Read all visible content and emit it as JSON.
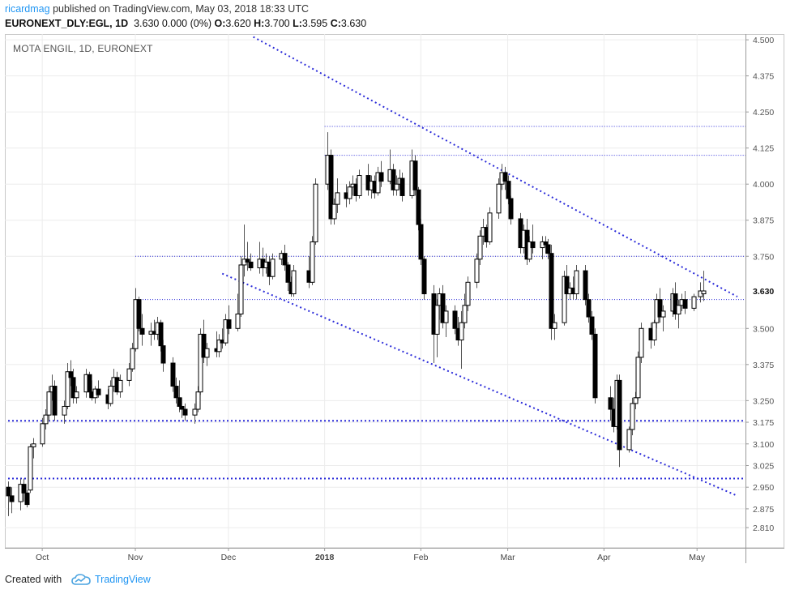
{
  "header": {
    "user": "ricardmag",
    "published": "published on TradingView.com, May 03, 2018 18:33 UTC",
    "symbol": "EURONEXT_DLY:EGL, 1D",
    "last": "3.630",
    "change": "0.000 (0%)",
    "open_label": "O:",
    "open": "3.620",
    "high_label": "H:",
    "high": "3.700",
    "low_label": "L:",
    "low": "3.595",
    "close_label": "C:",
    "close": "3.630"
  },
  "footer": {
    "created_with": "Created with",
    "brand": "TradingView",
    "logo_icon": "tradingview-cloud-icon"
  },
  "chart_data": {
    "type": "candlestick",
    "title": "MOTA ENGIL, 1D, EURONEXT",
    "y_axis": {
      "side": "right",
      "range": [
        2.74,
        4.52
      ],
      "ticks": [
        4.5,
        4.375,
        4.25,
        4.125,
        4.0,
        3.875,
        3.75,
        3.5,
        3.375,
        3.25,
        3.175,
        3.1,
        3.025,
        2.95,
        2.875,
        2.81
      ],
      "tick_labels": [
        "4.500",
        "4.375",
        "4.250",
        "4.125",
        "4.000",
        "3.875",
        "3.750",
        "3.500",
        "3.375",
        "3.250",
        "3.175",
        "3.100",
        "3.025",
        "2.950",
        "2.875",
        "2.810"
      ],
      "last_price_label": "3.630"
    },
    "x_axis": {
      "range": [
        "2017-09-21",
        "2018-05-14"
      ],
      "ticks": [
        {
          "label": "Oct",
          "date": "2017-10-02",
          "bold": false
        },
        {
          "label": "Nov",
          "date": "2017-11-01",
          "bold": false
        },
        {
          "label": "Dec",
          "date": "2017-12-01",
          "bold": false
        },
        {
          "label": "2018",
          "date": "2018-01-01",
          "bold": true
        },
        {
          "label": "Feb",
          "date": "2018-02-01",
          "bold": false
        },
        {
          "label": "Mar",
          "date": "2018-03-01",
          "bold": false
        },
        {
          "label": "Apr",
          "date": "2018-04-01",
          "bold": false
        },
        {
          "label": "May",
          "date": "2018-05-01",
          "bold": false
        }
      ]
    },
    "grid": true,
    "colors": {
      "up": "#ffffff",
      "down": "#000000",
      "outline": "#000000",
      "wick": "#555555",
      "lines": "#2b2bd9"
    },
    "horizontal_lines": [
      {
        "price": 4.2,
        "from": "2018-01-01",
        "style": "dotted-thin"
      },
      {
        "price": 4.1,
        "from": "2018-01-01",
        "style": "dotted-thin"
      },
      {
        "price": 3.75,
        "from": "2017-11-01",
        "style": "dotted-thin"
      },
      {
        "price": 3.6,
        "from": "2017-11-01",
        "style": "dotted-thin"
      },
      {
        "price": 3.18,
        "from": "2017-09-21",
        "style": "dotted-bold"
      },
      {
        "price": 2.98,
        "from": "2017-09-21",
        "style": "dotted-bold"
      }
    ],
    "trend_lines": [
      {
        "from": [
          "2017-12-09",
          4.51
        ],
        "to": [
          "2018-05-14",
          3.61
        ]
      },
      {
        "from": [
          "2017-11-29",
          3.69
        ],
        "to": [
          "2018-05-14",
          2.92
        ]
      }
    ],
    "candles": [
      [
        "2017-09-21",
        2.95,
        2.97,
        2.85,
        2.92
      ],
      [
        "2017-09-22",
        2.92,
        2.95,
        2.86,
        2.9
      ],
      [
        "2017-09-25",
        2.9,
        2.98,
        2.87,
        2.96
      ],
      [
        "2017-09-26",
        2.96,
        2.98,
        2.9,
        2.93
      ],
      [
        "2017-09-27",
        2.93,
        2.94,
        2.88,
        2.89
      ],
      [
        "2017-09-28",
        2.94,
        3.1,
        2.93,
        3.09
      ],
      [
        "2017-09-29",
        3.09,
        3.12,
        3.05,
        3.1
      ],
      [
        "2017-10-02",
        3.1,
        3.19,
        3.09,
        3.17
      ],
      [
        "2017-10-03",
        3.17,
        3.22,
        3.15,
        3.2
      ],
      [
        "2017-10-04",
        3.2,
        3.3,
        3.18,
        3.28
      ],
      [
        "2017-10-05",
        3.28,
        3.34,
        3.25,
        3.3
      ],
      [
        "2017-10-06",
        3.3,
        3.32,
        3.18,
        3.2
      ],
      [
        "2017-10-09",
        3.2,
        3.25,
        3.17,
        3.23
      ],
      [
        "2017-10-10",
        3.23,
        3.38,
        3.22,
        3.35
      ],
      [
        "2017-10-11",
        3.35,
        3.39,
        3.3,
        3.33
      ],
      [
        "2017-10-12",
        3.33,
        3.36,
        3.24,
        3.26
      ],
      [
        "2017-10-13",
        3.26,
        3.3,
        3.24,
        3.28
      ],
      [
        "2017-10-16",
        3.28,
        3.36,
        3.26,
        3.34
      ],
      [
        "2017-10-17",
        3.34,
        3.35,
        3.26,
        3.28
      ],
      [
        "2017-10-18",
        3.28,
        3.32,
        3.25,
        3.26
      ],
      [
        "2017-10-19",
        3.26,
        3.3,
        3.24,
        3.29
      ],
      [
        "2017-10-20",
        3.29,
        3.32,
        3.26,
        3.27
      ],
      [
        "2017-10-23",
        3.27,
        3.29,
        3.22,
        3.24
      ],
      [
        "2017-10-24",
        3.24,
        3.32,
        3.23,
        3.3
      ],
      [
        "2017-10-25",
        3.3,
        3.36,
        3.28,
        3.33
      ],
      [
        "2017-10-26",
        3.33,
        3.35,
        3.27,
        3.28
      ],
      [
        "2017-10-27",
        3.28,
        3.34,
        3.26,
        3.32
      ],
      [
        "2017-10-30",
        3.32,
        3.38,
        3.3,
        3.36
      ],
      [
        "2017-10-31",
        3.36,
        3.45,
        3.35,
        3.43
      ],
      [
        "2017-11-01",
        3.43,
        3.64,
        3.42,
        3.6
      ],
      [
        "2017-11-02",
        3.6,
        3.61,
        3.49,
        3.5
      ],
      [
        "2017-11-03",
        3.5,
        3.55,
        3.44,
        3.48
      ],
      [
        "2017-11-06",
        3.48,
        3.52,
        3.44,
        3.49
      ],
      [
        "2017-11-07",
        3.49,
        3.53,
        3.46,
        3.48
      ],
      [
        "2017-11-08",
        3.48,
        3.54,
        3.46,
        3.52
      ],
      [
        "2017-11-09",
        3.52,
        3.53,
        3.42,
        3.44
      ],
      [
        "2017-11-10",
        3.44,
        3.46,
        3.35,
        3.38
      ],
      [
        "2017-11-13",
        3.38,
        3.4,
        3.28,
        3.3
      ],
      [
        "2017-11-14",
        3.3,
        3.33,
        3.24,
        3.26
      ],
      [
        "2017-11-15",
        3.26,
        3.32,
        3.21,
        3.23
      ],
      [
        "2017-11-16",
        3.23,
        3.26,
        3.19,
        3.22
      ],
      [
        "2017-11-17",
        3.22,
        3.24,
        3.18,
        3.2
      ],
      [
        "2017-11-20",
        3.2,
        3.24,
        3.17,
        3.22
      ],
      [
        "2017-11-21",
        3.22,
        3.3,
        3.21,
        3.28
      ],
      [
        "2017-11-22",
        3.28,
        3.5,
        3.27,
        3.48
      ],
      [
        "2017-11-23",
        3.48,
        3.53,
        3.38,
        3.4
      ],
      [
        "2017-11-24",
        3.4,
        3.45,
        3.37,
        3.43
      ],
      [
        "2017-11-27",
        3.43,
        3.49,
        3.4,
        3.42
      ],
      [
        "2017-11-28",
        3.42,
        3.48,
        3.4,
        3.46
      ],
      [
        "2017-11-29",
        3.46,
        3.5,
        3.43,
        3.45
      ],
      [
        "2017-11-30",
        3.45,
        3.55,
        3.44,
        3.53
      ],
      [
        "2017-12-01",
        3.53,
        3.58,
        3.48,
        3.5
      ],
      [
        "2017-12-04",
        3.5,
        3.62,
        3.49,
        3.55
      ],
      [
        "2017-12-05",
        3.55,
        3.75,
        3.54,
        3.72
      ],
      [
        "2017-12-06",
        3.72,
        3.86,
        3.68,
        3.74
      ],
      [
        "2017-12-07",
        3.74,
        3.8,
        3.7,
        3.73
      ],
      [
        "2017-12-08",
        3.73,
        3.76,
        3.7,
        3.71
      ],
      [
        "2017-12-11",
        3.71,
        3.8,
        3.69,
        3.74
      ],
      [
        "2017-12-12",
        3.74,
        3.78,
        3.68,
        3.71
      ],
      [
        "2017-12-13",
        3.71,
        3.76,
        3.69,
        3.73
      ],
      [
        "2017-12-14",
        3.73,
        3.75,
        3.65,
        3.68
      ],
      [
        "2017-12-15",
        3.68,
        3.76,
        3.67,
        3.74
      ],
      [
        "2017-12-18",
        3.74,
        3.77,
        3.72,
        3.76
      ],
      [
        "2017-12-19",
        3.76,
        3.79,
        3.7,
        3.72
      ],
      [
        "2017-12-20",
        3.72,
        3.73,
        3.63,
        3.66
      ],
      [
        "2017-12-21",
        3.66,
        3.68,
        3.61,
        3.62
      ],
      [
        "2017-12-22",
        3.62,
        3.72,
        3.61,
        3.7
      ],
      [
        "2017-12-27",
        3.7,
        3.75,
        3.64,
        3.66
      ],
      [
        "2017-12-28",
        3.66,
        3.82,
        3.65,
        3.8
      ],
      [
        "2017-12-29",
        3.8,
        4.02,
        3.79,
        4.0
      ],
      [
        "2018-01-02",
        4.0,
        4.18,
        3.98,
        4.1
      ],
      [
        "2018-01-03",
        4.1,
        4.12,
        3.86,
        3.88
      ],
      [
        "2018-01-04",
        3.88,
        3.95,
        3.86,
        3.93
      ],
      [
        "2018-01-05",
        3.93,
        4.02,
        3.9,
        3.97
      ],
      [
        "2018-01-08",
        3.97,
        4.0,
        3.92,
        3.95
      ],
      [
        "2018-01-09",
        3.95,
        4.01,
        3.93,
        3.99
      ],
      [
        "2018-01-10",
        3.99,
        4.03,
        3.96,
        4.0
      ],
      [
        "2018-01-11",
        4.0,
        4.02,
        3.94,
        3.96
      ],
      [
        "2018-01-12",
        3.96,
        4.05,
        3.95,
        4.03
      ],
      [
        "2018-01-15",
        4.03,
        4.07,
        3.96,
        3.98
      ],
      [
        "2018-01-16",
        3.98,
        4.03,
        3.95,
        4.01
      ],
      [
        "2018-01-17",
        4.01,
        4.03,
        3.95,
        3.97
      ],
      [
        "2018-01-18",
        3.97,
        4.06,
        3.96,
        4.04
      ],
      [
        "2018-01-19",
        4.04,
        4.08,
        3.99,
        4.01
      ],
      [
        "2018-01-22",
        4.01,
        4.12,
        4.0,
        4.05
      ],
      [
        "2018-01-23",
        4.05,
        4.07,
        3.96,
        3.98
      ],
      [
        "2018-01-24",
        3.98,
        4.03,
        3.96,
        4.0
      ],
      [
        "2018-01-25",
        4.0,
        4.05,
        3.98,
        4.02
      ],
      [
        "2018-01-26",
        4.02,
        4.04,
        3.94,
        3.96
      ],
      [
        "2018-01-29",
        3.96,
        4.12,
        3.95,
        4.08
      ],
      [
        "2018-01-30",
        4.08,
        4.1,
        3.96,
        3.98
      ],
      [
        "2018-01-31",
        3.98,
        3.99,
        3.84,
        3.86
      ],
      [
        "2018-02-01",
        3.86,
        3.88,
        3.72,
        3.74
      ],
      [
        "2018-02-02",
        3.74,
        3.75,
        3.6,
        3.62
      ],
      [
        "2018-02-05",
        3.62,
        3.65,
        3.38,
        3.48
      ],
      [
        "2018-02-06",
        3.48,
        3.6,
        3.4,
        3.58
      ],
      [
        "2018-02-07",
        3.58,
        3.64,
        3.53,
        3.62
      ],
      [
        "2018-02-08",
        3.62,
        3.65,
        3.5,
        3.52
      ],
      [
        "2018-02-09",
        3.52,
        3.58,
        3.47,
        3.56
      ],
      [
        "2018-02-12",
        3.56,
        3.58,
        3.48,
        3.5
      ],
      [
        "2018-02-13",
        3.5,
        3.54,
        3.44,
        3.46
      ],
      [
        "2018-02-14",
        3.46,
        3.56,
        3.36,
        3.52
      ],
      [
        "2018-02-15",
        3.52,
        3.62,
        3.5,
        3.58
      ],
      [
        "2018-02-16",
        3.58,
        3.68,
        3.56,
        3.66
      ],
      [
        "2018-02-19",
        3.66,
        3.76,
        3.64,
        3.74
      ],
      [
        "2018-02-20",
        3.74,
        3.84,
        3.72,
        3.82
      ],
      [
        "2018-02-21",
        3.82,
        3.88,
        3.79,
        3.85
      ],
      [
        "2018-02-22",
        3.85,
        3.86,
        3.78,
        3.8
      ],
      [
        "2018-02-23",
        3.8,
        3.92,
        3.79,
        3.9
      ],
      [
        "2018-02-26",
        3.9,
        4.02,
        3.88,
        4.0
      ],
      [
        "2018-02-27",
        4.0,
        4.07,
        3.98,
        4.04
      ],
      [
        "2018-02-28",
        4.04,
        4.06,
        3.98,
        4.01
      ],
      [
        "2018-03-01",
        4.01,
        4.03,
        3.93,
        3.95
      ],
      [
        "2018-03-02",
        3.95,
        3.96,
        3.86,
        3.88
      ],
      [
        "2018-03-05",
        3.88,
        3.9,
        3.76,
        3.78
      ],
      [
        "2018-03-06",
        3.78,
        3.86,
        3.76,
        3.84
      ],
      [
        "2018-03-07",
        3.84,
        3.88,
        3.72,
        3.74
      ],
      [
        "2018-03-08",
        3.74,
        3.82,
        3.73,
        3.8
      ],
      [
        "2018-03-09",
        3.8,
        3.86,
        3.76,
        3.78
      ],
      [
        "2018-03-12",
        3.78,
        3.82,
        3.74,
        3.8
      ],
      [
        "2018-03-13",
        3.8,
        3.82,
        3.76,
        3.79
      ],
      [
        "2018-03-14",
        3.79,
        3.81,
        3.74,
        3.76
      ],
      [
        "2018-03-15",
        3.76,
        3.79,
        3.46,
        3.5
      ],
      [
        "2018-03-16",
        3.5,
        3.55,
        3.46,
        3.52
      ],
      [
        "2018-03-19",
        3.52,
        3.7,
        3.51,
        3.68
      ],
      [
        "2018-03-20",
        3.68,
        3.72,
        3.6,
        3.62
      ],
      [
        "2018-03-21",
        3.62,
        3.66,
        3.6,
        3.64
      ],
      [
        "2018-03-22",
        3.64,
        3.68,
        3.6,
        3.62
      ],
      [
        "2018-03-23",
        3.62,
        3.72,
        3.6,
        3.7
      ],
      [
        "2018-03-26",
        3.7,
        3.72,
        3.58,
        3.6
      ],
      [
        "2018-03-27",
        3.6,
        3.62,
        3.52,
        3.54
      ],
      [
        "2018-03-28",
        3.54,
        3.56,
        3.46,
        3.48
      ],
      [
        "2018-03-29",
        3.48,
        3.5,
        3.24,
        3.26
      ],
      [
        "2018-04-03",
        3.26,
        3.3,
        3.18,
        3.22
      ],
      [
        "2018-04-04",
        3.22,
        3.26,
        3.14,
        3.16
      ],
      [
        "2018-04-05",
        3.16,
        3.34,
        3.15,
        3.32
      ],
      [
        "2018-04-06",
        3.32,
        3.34,
        3.02,
        3.08
      ],
      [
        "2018-04-09",
        3.08,
        3.16,
        3.07,
        3.15
      ],
      [
        "2018-04-10",
        3.15,
        3.26,
        3.13,
        3.24
      ],
      [
        "2018-04-11",
        3.24,
        3.28,
        3.22,
        3.26
      ],
      [
        "2018-04-12",
        3.26,
        3.42,
        3.25,
        3.4
      ],
      [
        "2018-04-13",
        3.4,
        3.52,
        3.38,
        3.5
      ],
      [
        "2018-04-16",
        3.5,
        3.52,
        3.43,
        3.46
      ],
      [
        "2018-04-17",
        3.46,
        3.53,
        3.44,
        3.52
      ],
      [
        "2018-04-18",
        3.52,
        3.62,
        3.5,
        3.6
      ],
      [
        "2018-04-19",
        3.6,
        3.64,
        3.52,
        3.54
      ],
      [
        "2018-04-20",
        3.54,
        3.58,
        3.49,
        3.56
      ],
      [
        "2018-04-23",
        3.56,
        3.64,
        3.54,
        3.62
      ],
      [
        "2018-04-24",
        3.62,
        3.66,
        3.53,
        3.55
      ],
      [
        "2018-04-25",
        3.55,
        3.6,
        3.5,
        3.58
      ],
      [
        "2018-04-26",
        3.58,
        3.62,
        3.56,
        3.6
      ],
      [
        "2018-04-27",
        3.6,
        3.63,
        3.55,
        3.57
      ],
      [
        "2018-04-30",
        3.57,
        3.62,
        3.56,
        3.61
      ],
      [
        "2018-05-02",
        3.61,
        3.66,
        3.59,
        3.63
      ],
      [
        "2018-05-03",
        3.62,
        3.7,
        3.595,
        3.63
      ]
    ]
  }
}
